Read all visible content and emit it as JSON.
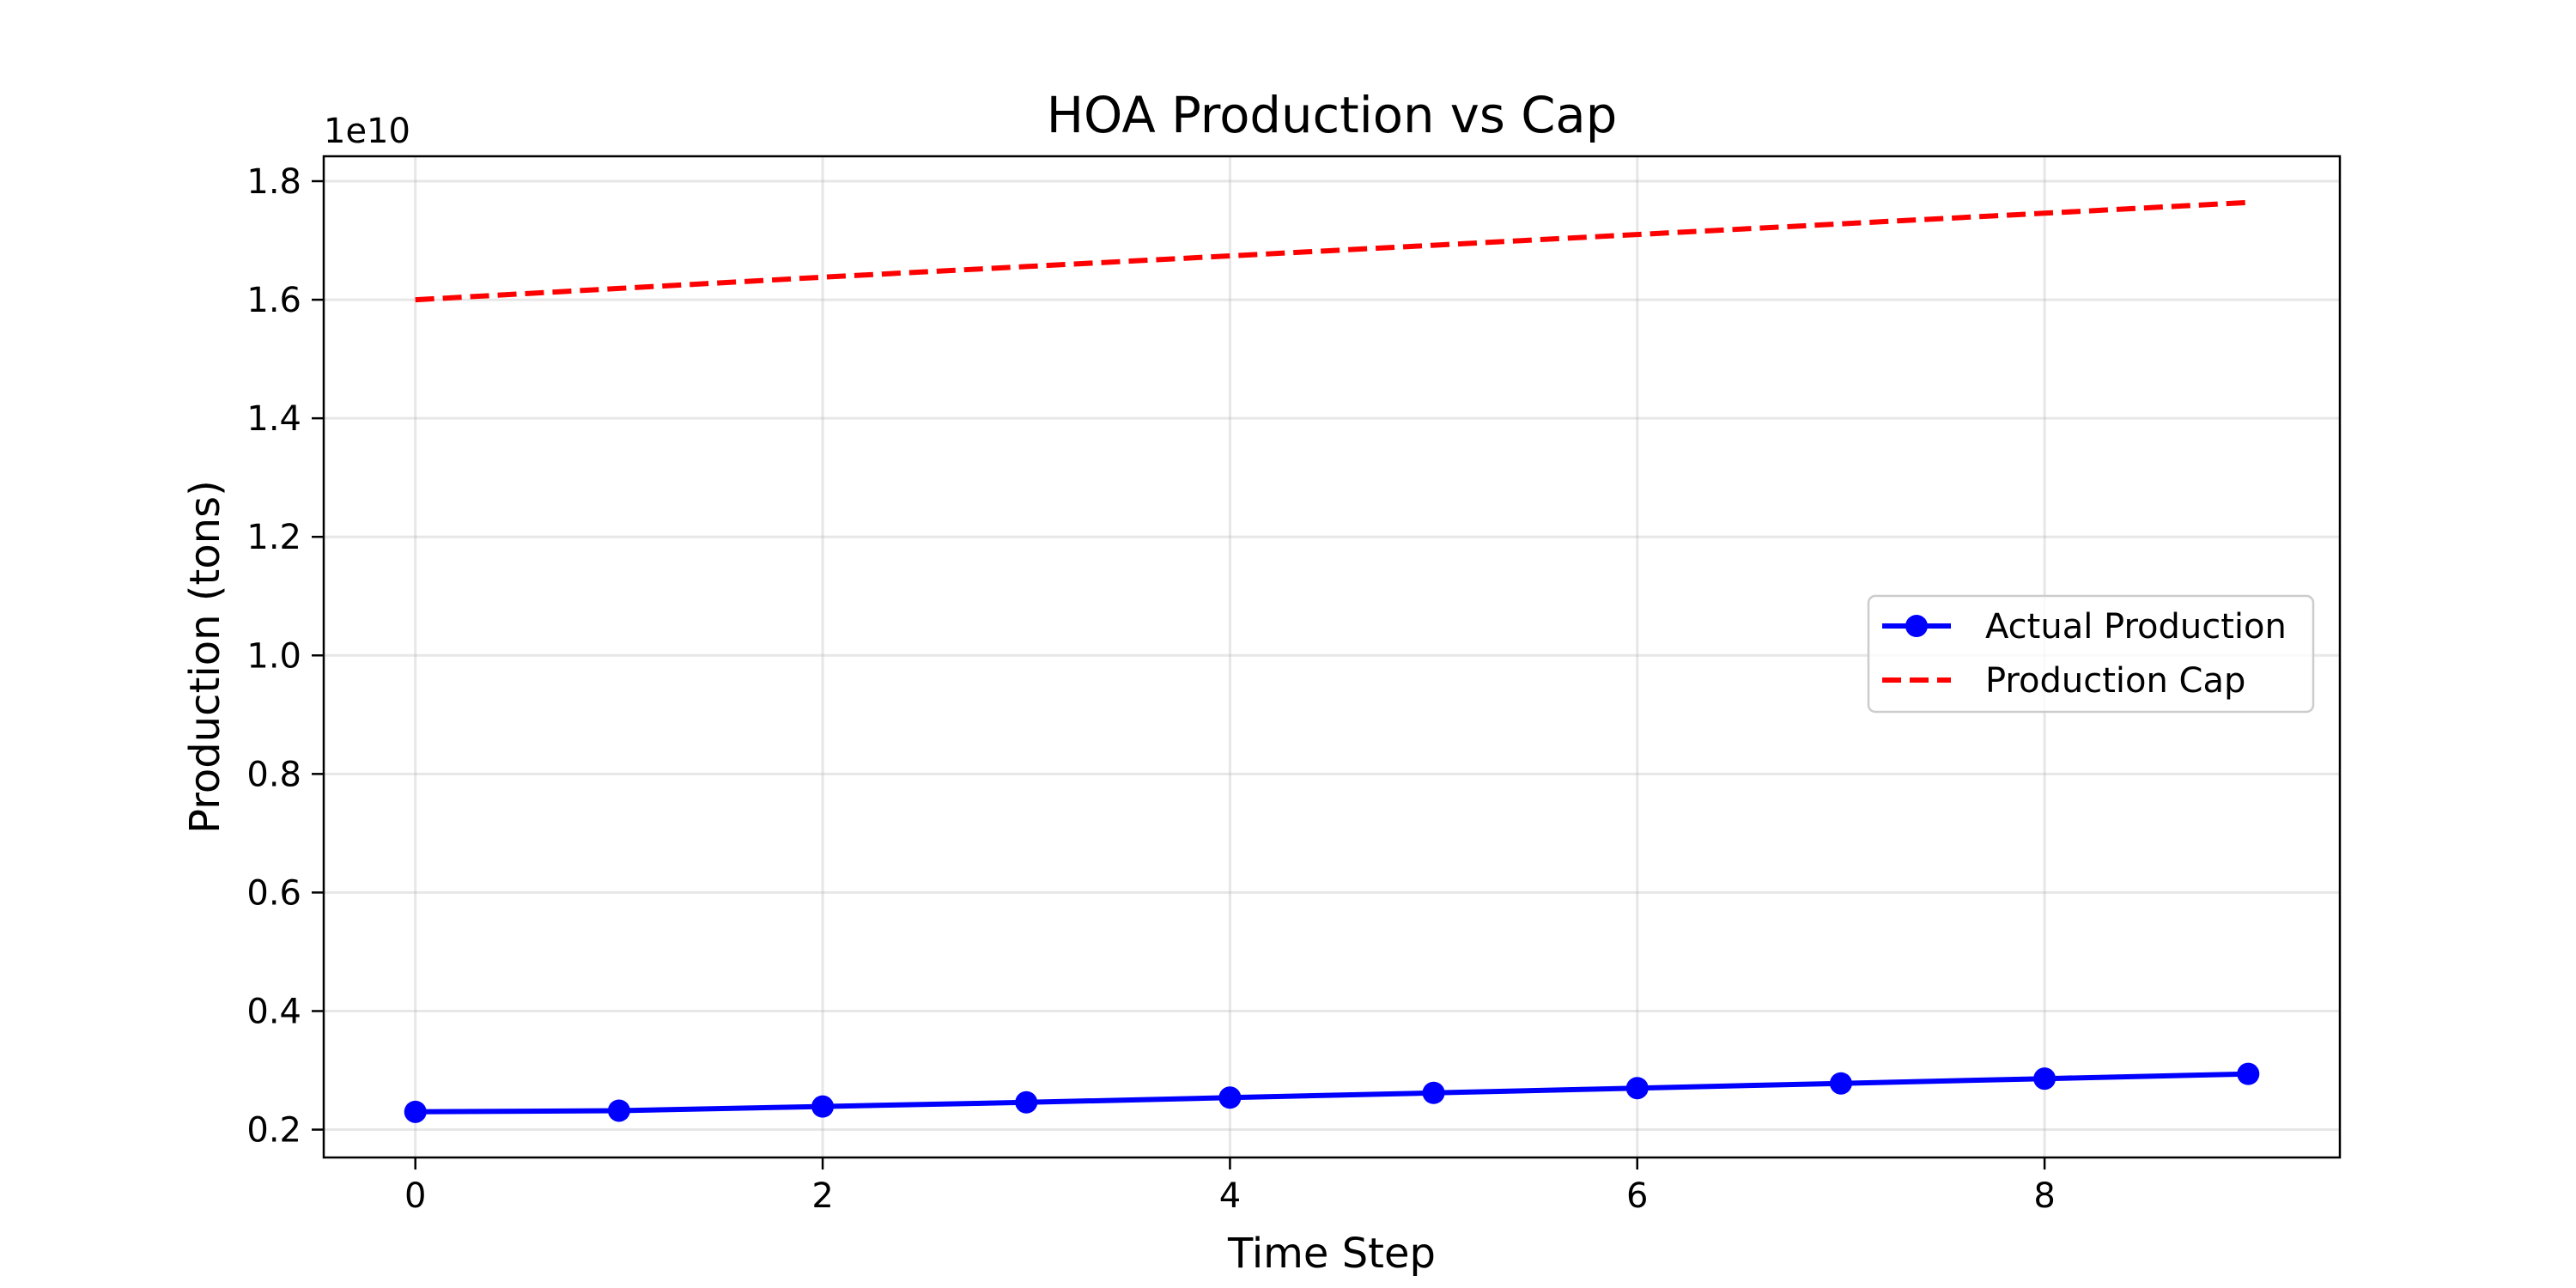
{
  "chart_data": {
    "type": "line",
    "title": "HOA Production vs Cap",
    "xlabel": "Time Step",
    "ylabel": "Production (tons)",
    "y_offset_label": "1e10",
    "y_scale_factor": 10000000000,
    "xlim": [
      -0.45,
      9.45
    ],
    "ylim": [
      1530000000,
      18420000000
    ],
    "x_ticks": [
      0,
      2,
      4,
      6,
      8
    ],
    "x_tick_labels": [
      "0",
      "2",
      "4",
      "6",
      "8"
    ],
    "y_ticks": [
      2000000000,
      4000000000,
      6000000000,
      8000000000,
      10000000000,
      12000000000,
      14000000000,
      16000000000,
      18000000000
    ],
    "y_tick_labels": [
      "0.2",
      "0.4",
      "0.6",
      "0.8",
      "1.0",
      "1.2",
      "1.4",
      "1.6",
      "1.8"
    ],
    "grid": true,
    "legend_position": "center-right",
    "x": [
      0,
      1,
      2,
      3,
      4,
      5,
      6,
      7,
      8,
      9
    ],
    "series": [
      {
        "name": "Actual Production",
        "style": "solid-with-markers",
        "color": "#0000ff",
        "values": [
          2300000000,
          2320000000,
          2390000000,
          2460000000,
          2540000000,
          2620000000,
          2700000000,
          2780000000,
          2860000000,
          2940000000
        ]
      },
      {
        "name": "Production Cap",
        "style": "dashed",
        "color": "#ff0000",
        "values": [
          16000000000,
          16190000000,
          16380000000,
          16560000000,
          16740000000,
          16920000000,
          17100000000,
          17280000000,
          17460000000,
          17640000000
        ]
      }
    ]
  }
}
